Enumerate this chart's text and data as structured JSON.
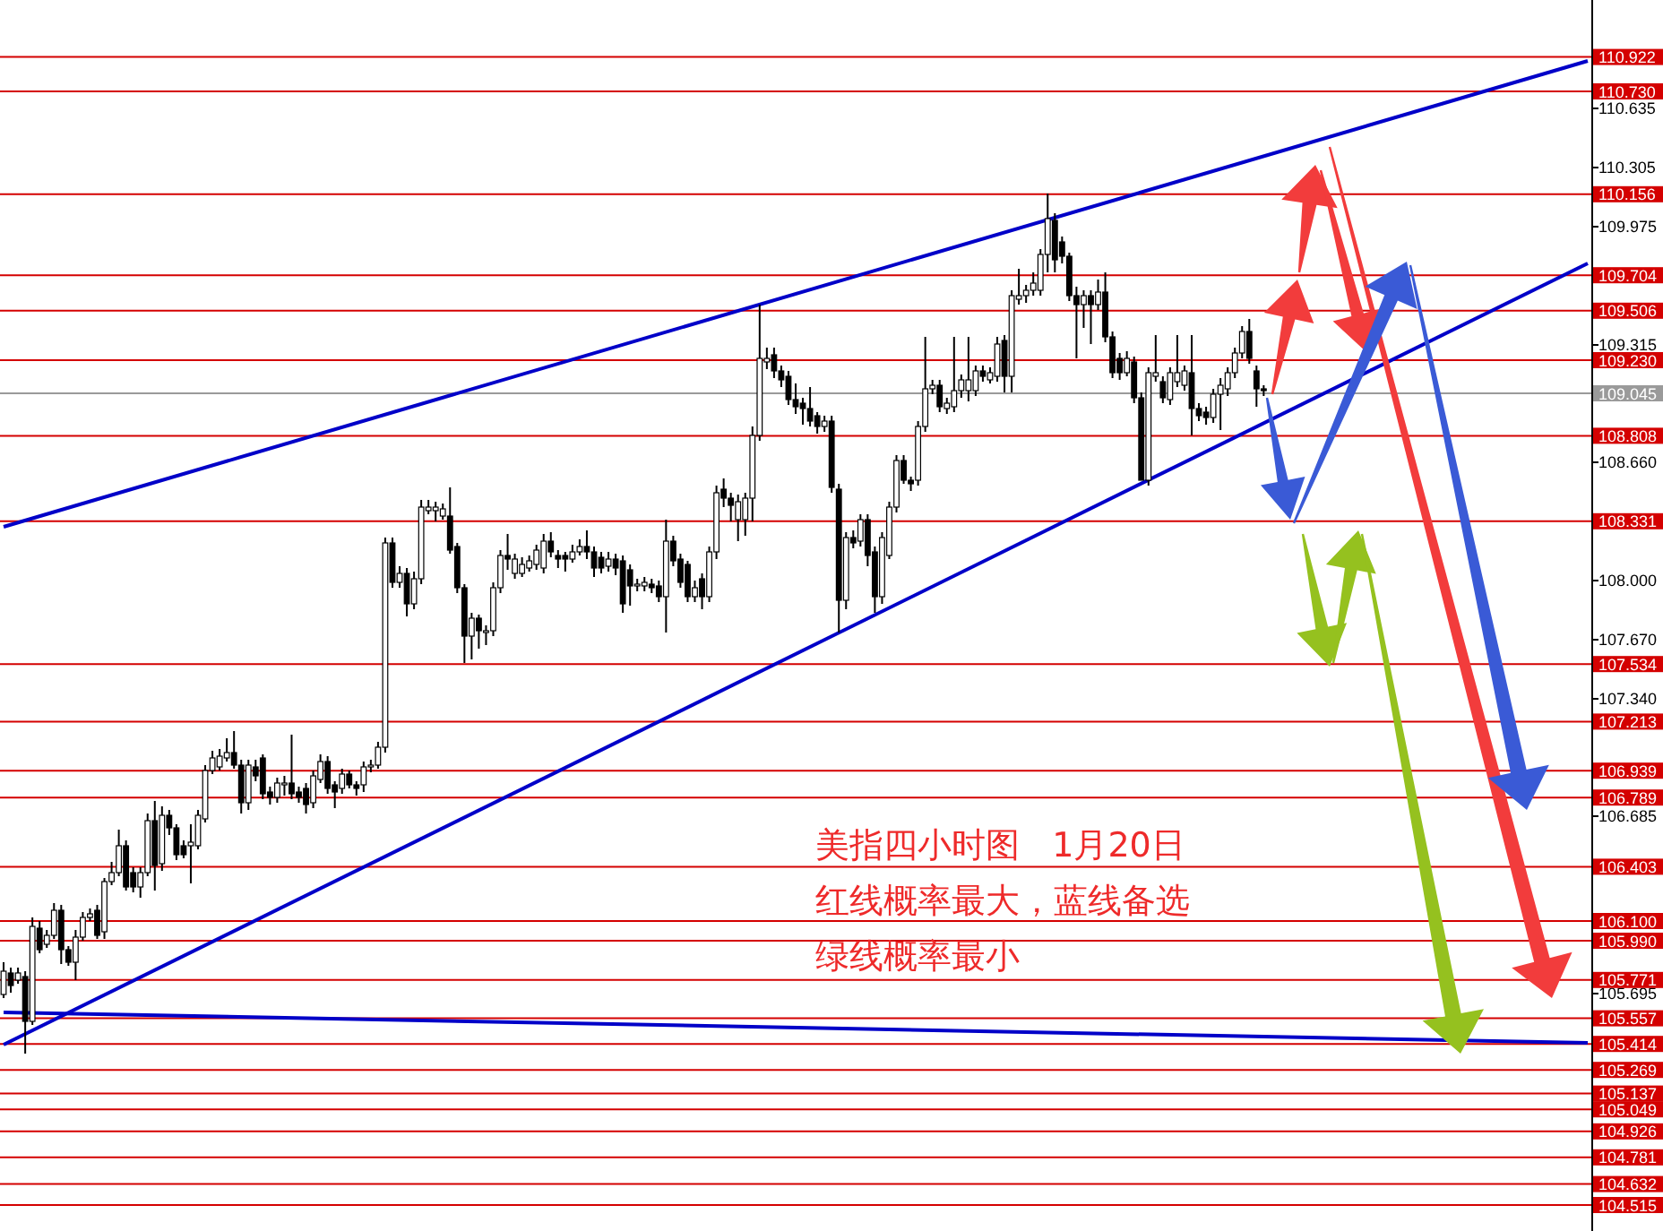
{
  "chart_data": {
    "type": "candlestick",
    "categories": [
      null,
      null,
      null,
      null,
      null,
      null,
      null,
      null,
      null,
      null,
      null,
      null,
      null,
      null,
      null,
      null,
      null,
      null,
      null,
      null,
      null,
      null,
      null,
      null,
      null,
      null,
      null,
      null,
      null,
      null,
      null,
      null,
      null,
      null,
      null,
      null,
      null,
      null,
      null,
      null,
      null,
      null,
      null,
      null,
      null,
      null,
      null,
      null,
      null,
      null,
      null,
      null,
      null,
      null,
      null,
      null,
      null,
      null,
      null,
      null,
      null,
      null,
      null,
      null,
      null,
      null,
      null,
      null,
      null,
      null,
      null,
      null,
      null,
      null,
      null,
      null,
      null,
      null,
      null,
      null,
      null,
      null,
      null,
      null,
      null,
      null,
      null,
      null,
      null,
      null,
      null,
      null,
      null,
      null,
      null,
      null,
      null,
      null,
      null,
      null,
      null,
      null,
      null,
      null,
      null,
      null,
      null,
      null,
      null,
      null,
      null,
      null,
      null,
      null,
      null,
      null,
      null,
      null,
      null,
      null,
      null,
      null,
      null,
      null,
      null,
      null,
      null,
      null,
      null,
      null,
      null,
      null,
      null,
      null,
      null,
      null,
      null,
      null,
      null,
      null,
      null,
      null,
      null,
      null,
      null,
      null,
      null,
      null,
      null,
      null,
      null,
      null,
      null,
      null,
      null,
      null,
      null,
      null,
      null,
      null,
      null,
      null,
      null,
      null,
      null,
      null,
      null,
      null,
      null,
      null,
      null,
      null,
      null,
      null,
      null,
      null,
      null,
      null,
      null,
      null,
      null,
      null,
      null,
      null,
      null,
      null,
      null,
      null,
      null,
      null,
      null,
      null,
      null,
      null,
      null,
      null,
      null,
      null,
      null,
      null,
      null,
      null,
      null,
      null,
      null,
      null,
      null,
      null,
      null,
      null,
      null,
      null,
      null,
      null,
      null,
      null,
      null,
      null,
      null,
      null,
      null
    ],
    "ohlc": [
      [
        105.69,
        105.87,
        105.67,
        105.82
      ],
      [
        105.81,
        105.84,
        105.7,
        105.74
      ],
      [
        105.77,
        105.84,
        105.75,
        105.81
      ],
      [
        105.79,
        105.82,
        105.36,
        105.54
      ],
      [
        105.54,
        106.12,
        105.52,
        106.07
      ],
      [
        106.06,
        106.1,
        105.92,
        105.94
      ],
      [
        105.97,
        106.05,
        105.95,
        106.02
      ],
      [
        106.02,
        106.2,
        106.0,
        106.16
      ],
      [
        106.16,
        106.19,
        105.86,
        105.94
      ],
      [
        105.94,
        105.96,
        105.85,
        105.87
      ],
      [
        105.87,
        106.05,
        105.77,
        106.01
      ],
      [
        106.01,
        106.15,
        105.99,
        106.12
      ],
      [
        106.12,
        106.17,
        106.1,
        106.14
      ],
      [
        106.16,
        106.19,
        106.0,
        106.02
      ],
      [
        106.04,
        106.34,
        106.0,
        106.32
      ],
      [
        106.32,
        106.43,
        106.3,
        106.37
      ],
      [
        106.37,
        106.61,
        106.35,
        106.52
      ],
      [
        106.52,
        106.55,
        106.27,
        106.29
      ],
      [
        106.37,
        106.4,
        106.26,
        106.29
      ],
      [
        106.29,
        106.4,
        106.23,
        106.37
      ],
      [
        106.37,
        106.7,
        106.35,
        106.66
      ],
      [
        106.66,
        106.77,
        106.27,
        106.41
      ],
      [
        106.42,
        106.74,
        106.38,
        106.69
      ],
      [
        106.69,
        106.72,
        106.58,
        106.62
      ],
      [
        106.62,
        106.64,
        106.44,
        106.47
      ],
      [
        106.52,
        106.55,
        106.45,
        106.47
      ],
      [
        106.52,
        106.64,
        106.31,
        106.54
      ],
      [
        106.52,
        106.72,
        106.5,
        106.69
      ],
      [
        106.67,
        106.97,
        106.65,
        106.94
      ],
      [
        106.94,
        107.05,
        106.92,
        107.01
      ],
      [
        106.96,
        107.06,
        106.94,
        107.02
      ],
      [
        107.01,
        107.12,
        106.99,
        107.04
      ],
      [
        107.04,
        107.16,
        106.95,
        106.97
      ],
      [
        106.97,
        107.0,
        106.7,
        106.76
      ],
      [
        106.76,
        107.0,
        106.72,
        106.97
      ],
      [
        106.96,
        107.0,
        106.88,
        106.91
      ],
      [
        107.01,
        107.03,
        106.78,
        106.81
      ],
      [
        106.82,
        106.85,
        106.75,
        106.79
      ],
      [
        106.79,
        106.9,
        106.76,
        106.87
      ],
      [
        106.86,
        106.91,
        106.8,
        106.87
      ],
      [
        106.87,
        107.14,
        106.78,
        106.81
      ],
      [
        106.82,
        106.85,
        106.76,
        106.79
      ],
      [
        106.84,
        106.87,
        106.7,
        106.75
      ],
      [
        106.76,
        106.94,
        106.73,
        106.91
      ],
      [
        106.89,
        107.03,
        106.87,
        106.99
      ],
      [
        106.99,
        107.02,
        106.81,
        106.84
      ],
      [
        106.86,
        106.88,
        106.73,
        106.82
      ],
      [
        106.84,
        106.95,
        106.81,
        106.92
      ],
      [
        106.92,
        106.94,
        106.84,
        106.86
      ],
      [
        106.86,
        106.88,
        106.8,
        106.84
      ],
      [
        106.86,
        106.99,
        106.82,
        106.96
      ],
      [
        106.96,
        107.0,
        106.93,
        106.97
      ],
      [
        106.97,
        107.1,
        106.95,
        107.07
      ],
      [
        107.07,
        108.24,
        107.04,
        108.21
      ],
      [
        108.21,
        108.24,
        107.96,
        107.99
      ],
      [
        107.99,
        108.08,
        107.96,
        108.04
      ],
      [
        108.04,
        108.07,
        107.8,
        107.87
      ],
      [
        107.87,
        108.05,
        107.84,
        108.01
      ],
      [
        108.01,
        108.45,
        107.98,
        108.41
      ],
      [
        108.39,
        108.45,
        108.37,
        108.41
      ],
      [
        108.39,
        108.44,
        108.33,
        108.41
      ],
      [
        108.36,
        108.43,
        108.34,
        108.4
      ],
      [
        108.36,
        108.52,
        108.15,
        108.17
      ],
      [
        108.19,
        108.21,
        107.93,
        107.96
      ],
      [
        107.96,
        107.98,
        107.54,
        107.69
      ],
      [
        107.69,
        107.82,
        107.56,
        107.79
      ],
      [
        107.79,
        107.81,
        107.62,
        107.72
      ],
      [
        107.71,
        107.75,
        107.64,
        107.72
      ],
      [
        107.72,
        107.99,
        107.69,
        107.96
      ],
      [
        107.96,
        108.17,
        107.93,
        108.14
      ],
      [
        108.14,
        108.26,
        108.06,
        108.12
      ],
      [
        108.04,
        108.15,
        108.01,
        108.12
      ],
      [
        108.04,
        108.13,
        108.02,
        108.09
      ],
      [
        108.07,
        108.14,
        108.05,
        108.11
      ],
      [
        108.09,
        108.2,
        108.06,
        108.17
      ],
      [
        108.07,
        108.26,
        108.04,
        108.22
      ],
      [
        108.22,
        108.27,
        108.13,
        108.16
      ],
      [
        108.14,
        108.17,
        108.07,
        108.12
      ],
      [
        108.14,
        108.16,
        108.05,
        108.12
      ],
      [
        108.12,
        108.2,
        108.1,
        108.16
      ],
      [
        108.16,
        108.23,
        108.14,
        108.19
      ],
      [
        108.19,
        108.28,
        108.12,
        108.16
      ],
      [
        108.16,
        108.19,
        108.02,
        108.07
      ],
      [
        108.13,
        108.16,
        108.04,
        108.07
      ],
      [
        108.08,
        108.16,
        108.05,
        108.12
      ],
      [
        108.12,
        108.15,
        108.03,
        108.07
      ],
      [
        108.11,
        108.14,
        107.82,
        107.87
      ],
      [
        108.06,
        108.09,
        107.86,
        107.97
      ],
      [
        107.97,
        108.01,
        107.94,
        107.98
      ],
      [
        107.97,
        108.02,
        107.94,
        107.99
      ],
      [
        107.98,
        108.01,
        107.93,
        107.96
      ],
      [
        107.97,
        108.0,
        107.88,
        107.91
      ],
      [
        107.91,
        108.34,
        107.71,
        108.22
      ],
      [
        108.22,
        108.25,
        108.08,
        108.11
      ],
      [
        108.12,
        108.15,
        107.96,
        107.99
      ],
      [
        108.09,
        108.11,
        107.88,
        107.91
      ],
      [
        107.91,
        108.0,
        107.88,
        107.96
      ],
      [
        108.01,
        108.04,
        107.84,
        107.91
      ],
      [
        107.91,
        108.19,
        107.88,
        108.16
      ],
      [
        108.16,
        108.53,
        108.12,
        108.49
      ],
      [
        108.51,
        108.57,
        108.41,
        108.46
      ],
      [
        108.46,
        108.49,
        108.33,
        108.42
      ],
      [
        108.34,
        108.48,
        108.22,
        108.44
      ],
      [
        108.34,
        108.49,
        108.25,
        108.46
      ],
      [
        108.46,
        108.86,
        108.33,
        108.81
      ],
      [
        108.81,
        109.54,
        108.78,
        109.24
      ],
      [
        109.22,
        109.3,
        109.18,
        109.24
      ],
      [
        109.26,
        109.3,
        109.13,
        109.17
      ],
      [
        109.17,
        109.2,
        109.08,
        109.12
      ],
      [
        109.14,
        109.17,
        108.98,
        109.01
      ],
      [
        109.01,
        109.1,
        108.93,
        108.97
      ],
      [
        108.99,
        109.02,
        108.87,
        108.96
      ],
      [
        108.96,
        109.08,
        108.86,
        108.89
      ],
      [
        108.92,
        108.94,
        108.82,
        108.86
      ],
      [
        108.86,
        108.92,
        108.83,
        108.89
      ],
      [
        108.89,
        108.92,
        108.49,
        108.52
      ],
      [
        108.51,
        108.54,
        107.71,
        107.89
      ],
      [
        107.89,
        108.27,
        107.84,
        108.24
      ],
      [
        108.24,
        108.28,
        108.18,
        108.21
      ],
      [
        108.22,
        108.37,
        108.19,
        108.34
      ],
      [
        108.34,
        108.37,
        108.08,
        108.14
      ],
      [
        108.16,
        108.19,
        107.82,
        107.91
      ],
      [
        107.91,
        108.27,
        107.87,
        108.24
      ],
      [
        108.14,
        108.44,
        108.12,
        108.41
      ],
      [
        108.41,
        108.7,
        108.38,
        108.67
      ],
      [
        108.67,
        108.7,
        108.54,
        108.56
      ],
      [
        108.56,
        108.58,
        108.5,
        108.54
      ],
      [
        108.56,
        108.89,
        108.53,
        108.86
      ],
      [
        108.86,
        109.36,
        108.83,
        109.07
      ],
      [
        109.07,
        109.12,
        109.04,
        109.09
      ],
      [
        109.09,
        109.12,
        108.94,
        108.97
      ],
      [
        108.96,
        109.02,
        108.93,
        108.99
      ],
      [
        108.97,
        109.36,
        108.94,
        109.06
      ],
      [
        109.06,
        109.15,
        109.02,
        109.12
      ],
      [
        109.06,
        109.36,
        109.0,
        109.12
      ],
      [
        109.06,
        109.2,
        109.03,
        109.17
      ],
      [
        109.17,
        109.2,
        109.11,
        109.14
      ],
      [
        109.12,
        109.19,
        109.1,
        109.16
      ],
      [
        109.14,
        109.36,
        109.11,
        109.32
      ],
      [
        109.34,
        109.37,
        109.05,
        109.14
      ],
      [
        109.14,
        109.62,
        109.05,
        109.59
      ],
      [
        109.57,
        109.74,
        109.54,
        109.59
      ],
      [
        109.59,
        109.65,
        109.55,
        109.62
      ],
      [
        109.62,
        109.72,
        109.59,
        109.66
      ],
      [
        109.62,
        109.85,
        109.59,
        109.82
      ],
      [
        109.82,
        110.16,
        109.72,
        110.02
      ],
      [
        110.01,
        110.05,
        109.72,
        109.79
      ],
      [
        109.89,
        109.92,
        109.77,
        109.81
      ],
      [
        109.81,
        109.83,
        109.56,
        109.59
      ],
      [
        109.59,
        109.64,
        109.24,
        109.54
      ],
      [
        109.54,
        109.62,
        109.41,
        109.59
      ],
      [
        109.59,
        109.62,
        109.32,
        109.54
      ],
      [
        109.54,
        109.68,
        109.51,
        109.61
      ],
      [
        109.61,
        109.72,
        109.33,
        109.36
      ],
      [
        109.36,
        109.39,
        109.13,
        109.16
      ],
      [
        109.24,
        109.27,
        109.12,
        109.16
      ],
      [
        109.16,
        109.28,
        109.14,
        109.24
      ],
      [
        109.22,
        109.25,
        108.99,
        109.02
      ],
      [
        109.02,
        109.05,
        108.56,
        108.56
      ],
      [
        108.56,
        109.19,
        108.53,
        109.16
      ],
      [
        109.14,
        109.37,
        109.11,
        109.16
      ],
      [
        109.11,
        109.14,
        108.99,
        109.02
      ],
      [
        109.01,
        109.19,
        108.98,
        109.16
      ],
      [
        109.11,
        109.37,
        109.08,
        109.16
      ],
      [
        109.09,
        109.2,
        109.06,
        109.17
      ],
      [
        109.16,
        109.37,
        108.81,
        108.96
      ],
      [
        108.96,
        108.99,
        108.89,
        108.92
      ],
      [
        108.94,
        108.97,
        108.87,
        108.91
      ],
      [
        108.91,
        109.07,
        108.88,
        109.04
      ],
      [
        109.04,
        109.13,
        108.84,
        109.09
      ],
      [
        109.07,
        109.19,
        109.03,
        109.16
      ],
      [
        109.16,
        109.3,
        109.13,
        109.27
      ],
      [
        109.27,
        109.42,
        109.24,
        109.39
      ],
      [
        109.39,
        109.46,
        109.21,
        109.24
      ],
      [
        109.17,
        109.2,
        108.97,
        109.07
      ],
      [
        109.07,
        109.09,
        109.03,
        109.06
      ],
      null,
      null,
      null,
      null,
      null,
      null,
      null,
      null,
      null,
      null,
      null,
      null,
      null,
      null,
      null,
      null,
      null,
      null,
      null,
      null,
      null,
      null,
      null,
      null,
      null,
      null,
      null,
      null,
      null,
      null,
      null,
      null,
      null,
      null,
      null,
      null,
      null,
      null,
      null,
      null,
      null,
      null,
      null,
      null,
      null
    ],
    "series": [
      {
        "type": "line",
        "color": "#0000c8",
        "values": [
          108.3,
          null,
          null,
          null,
          null,
          null,
          null,
          null,
          null,
          null,
          null,
          null,
          null,
          null,
          null,
          null,
          null,
          null,
          null,
          null,
          null,
          null,
          null,
          null,
          null,
          null,
          null,
          null,
          null,
          null,
          null,
          null,
          null,
          null,
          null,
          null,
          null,
          null,
          null,
          null,
          null,
          null,
          null,
          null,
          null,
          null,
          null,
          null,
          null,
          null,
          null,
          null,
          null,
          null,
          null,
          null,
          null,
          null,
          null,
          null,
          null,
          null,
          null,
          null,
          null,
          null,
          null,
          null,
          null,
          null,
          null,
          null,
          null,
          null,
          null,
          null,
          null,
          null,
          null,
          null,
          null,
          null,
          null,
          null,
          null,
          null,
          null,
          null,
          null,
          null,
          null,
          null,
          null,
          null,
          null,
          null,
          null,
          null,
          null,
          null,
          null,
          null,
          null,
          null,
          null,
          null,
          null,
          null,
          null,
          null,
          null,
          null,
          null,
          null,
          null,
          null,
          null,
          null,
          null,
          null,
          null,
          null,
          null,
          null,
          null,
          null,
          null,
          null,
          null,
          null,
          null,
          null,
          null,
          null,
          null,
          null,
          null,
          null,
          null,
          null,
          null,
          null,
          null,
          null,
          null,
          null,
          null,
          null,
          null,
          null,
          null,
          null,
          null,
          null,
          null,
          null,
          null,
          null,
          null,
          null,
          null,
          null,
          null,
          null,
          null,
          null,
          null,
          null,
          null,
          null,
          null,
          null,
          null,
          null,
          null,
          null,
          null,
          null,
          null,
          null,
          null,
          null,
          null,
          null,
          null,
          null,
          null,
          null,
          null,
          null,
          null,
          null,
          null,
          null,
          null,
          null,
          null,
          null,
          null,
          null,
          null,
          null,
          null,
          null,
          null,
          null,
          null,
          null,
          null,
          null,
          null,
          null,
          null,
          null,
          null,
          null,
          null,
          null,
          null,
          null,
          110.9
        ]
      },
      {
        "type": "line",
        "color": "#0000c8",
        "values": [
          105.41,
          null,
          null,
          null,
          null,
          null,
          null,
          null,
          null,
          null,
          null,
          null,
          null,
          null,
          null,
          null,
          null,
          null,
          null,
          null,
          null,
          null,
          null,
          null,
          null,
          null,
          null,
          null,
          null,
          null,
          null,
          null,
          null,
          null,
          null,
          null,
          null,
          null,
          null,
          null,
          null,
          null,
          null,
          null,
          null,
          null,
          null,
          null,
          null,
          null,
          null,
          null,
          null,
          null,
          null,
          null,
          null,
          null,
          null,
          null,
          null,
          null,
          null,
          null,
          null,
          null,
          null,
          null,
          null,
          null,
          null,
          null,
          null,
          null,
          null,
          null,
          null,
          null,
          null,
          null,
          null,
          null,
          null,
          null,
          null,
          null,
          null,
          null,
          null,
          null,
          null,
          null,
          null,
          null,
          null,
          null,
          null,
          null,
          null,
          null,
          null,
          null,
          null,
          null,
          null,
          null,
          null,
          null,
          null,
          null,
          null,
          null,
          null,
          null,
          null,
          null,
          null,
          null,
          null,
          null,
          null,
          null,
          null,
          null,
          null,
          null,
          null,
          null,
          null,
          null,
          null,
          null,
          null,
          null,
          null,
          null,
          null,
          null,
          null,
          null,
          null,
          null,
          null,
          null,
          null,
          null,
          null,
          null,
          null,
          null,
          null,
          null,
          null,
          null,
          null,
          null,
          null,
          null,
          null,
          null,
          null,
          null,
          null,
          null,
          null,
          null,
          null,
          null,
          null,
          null,
          null,
          null,
          null,
          null,
          null,
          null,
          null,
          null,
          null,
          null,
          null,
          null,
          null,
          null,
          null,
          null,
          null,
          null,
          null,
          null,
          null,
          null,
          null,
          null,
          null,
          null,
          null,
          null,
          null,
          null,
          null,
          null,
          null,
          null,
          null,
          null,
          null,
          null,
          null,
          null,
          null,
          null,
          null,
          null,
          null,
          null,
          null,
          null,
          null,
          null,
          109.77
        ]
      },
      {
        "type": "line",
        "color": "#0000c8",
        "values": [
          105.59,
          null,
          null,
          null,
          null,
          null,
          null,
          null,
          null,
          null,
          null,
          null,
          null,
          null,
          null,
          null,
          null,
          null,
          null,
          null,
          null,
          null,
          null,
          null,
          null,
          null,
          null,
          null,
          null,
          null,
          null,
          null,
          null,
          null,
          null,
          null,
          null,
          null,
          null,
          null,
          null,
          null,
          null,
          null,
          null,
          null,
          null,
          null,
          null,
          null,
          null,
          null,
          null,
          null,
          null,
          null,
          null,
          null,
          null,
          null,
          null,
          null,
          null,
          null,
          null,
          null,
          null,
          null,
          null,
          null,
          null,
          null,
          null,
          null,
          null,
          null,
          null,
          null,
          null,
          null,
          null,
          null,
          null,
          null,
          null,
          null,
          null,
          null,
          null,
          null,
          null,
          null,
          null,
          null,
          null,
          null,
          null,
          null,
          null,
          null,
          null,
          null,
          null,
          null,
          null,
          null,
          null,
          null,
          null,
          null,
          null,
          null,
          null,
          null,
          null,
          null,
          null,
          null,
          null,
          null,
          null,
          null,
          null,
          null,
          null,
          null,
          null,
          null,
          null,
          null,
          null,
          null,
          null,
          null,
          null,
          null,
          null,
          null,
          null,
          null,
          null,
          null,
          null,
          null,
          null,
          null,
          null,
          null,
          null,
          null,
          null,
          null,
          null,
          null,
          null,
          null,
          null,
          null,
          null,
          null,
          null,
          null,
          null,
          null,
          null,
          null,
          null,
          null,
          null,
          null,
          null,
          null,
          null,
          null,
          null,
          null,
          null,
          null,
          null,
          null,
          null,
          null,
          null,
          null,
          null,
          null,
          null,
          null,
          null,
          null,
          null,
          null,
          null,
          null,
          null,
          null,
          null,
          null,
          null,
          null,
          null,
          null,
          null,
          null,
          null,
          null,
          null,
          null,
          null,
          null,
          null,
          null,
          null,
          null,
          null,
          null,
          null,
          null,
          null,
          null,
          105.42
        ]
      }
    ],
    "ylim": [
      104.37,
      111.24
    ],
    "yticks": [
      110.635,
      110.305,
      109.975,
      109.315,
      {
        "value": 108.66,
        "label": "108.660"
      },
      {
        "value": 108.0,
        "label": "108.000"
      },
      {
        "value": 107.67,
        "label": "107.670"
      },
      {
        "value": 107.34,
        "label": "107.340"
      },
      106.685,
      105.695
    ],
    "tick_labels": "y",
    "grid": false,
    "ref_lines": [
      {
        "axis": "y",
        "value": 110.922,
        "label": "110.922",
        "color": "#d40000"
      },
      {
        "axis": "y",
        "value": 110.73,
        "label": "110.730",
        "color": "#d40000"
      },
      {
        "axis": "y",
        "value": 110.156,
        "label": "110.156",
        "color": "#d40000"
      },
      {
        "axis": "y",
        "value": 109.704,
        "label": "109.704",
        "color": "#d40000"
      },
      {
        "axis": "y",
        "value": 109.506,
        "label": "109.506",
        "color": "#d40000"
      },
      {
        "axis": "y",
        "value": 109.23,
        "label": "109.230",
        "color": "#d40000"
      },
      {
        "axis": "y",
        "value": 109.045,
        "label": "109.045",
        "color": "#9a9a9a"
      },
      {
        "axis": "y",
        "value": 108.808,
        "label": "108.808",
        "color": "#d40000"
      },
      {
        "axis": "y",
        "value": 108.331,
        "label": "108.331",
        "color": "#d40000"
      },
      {
        "axis": "y",
        "value": 107.534,
        "label": "107.534",
        "color": "#d40000"
      },
      {
        "axis": "y",
        "value": 107.213,
        "label": "107.213",
        "color": "#d40000"
      },
      {
        "axis": "y",
        "value": 106.939,
        "label": "106.939",
        "color": "#d40000"
      },
      {
        "axis": "y",
        "value": 106.789,
        "label": "106.789",
        "color": "#d40000"
      },
      {
        "axis": "y",
        "value": 106.403,
        "label": "106.403",
        "color": "#d40000"
      },
      {
        "axis": "y",
        "value": 106.1,
        "label": "106.100",
        "color": "#d40000"
      },
      {
        "axis": "y",
        "value": 105.99,
        "label": "105.990",
        "color": "#d40000"
      },
      {
        "axis": "y",
        "value": 105.771,
        "label": "105.771",
        "color": "#d40000"
      },
      {
        "axis": "y",
        "value": 105.557,
        "label": "105.557",
        "color": "#d40000"
      },
      {
        "axis": "y",
        "value": 105.414,
        "label": "105.414",
        "color": "#d40000"
      },
      {
        "axis": "y",
        "value": 105.269,
        "label": "105.269",
        "color": "#d40000"
      },
      {
        "axis": "y",
        "value": 105.137,
        "label": "105.137",
        "color": "#d40000"
      },
      {
        "axis": "y",
        "value": 105.049,
        "label": "105.049",
        "color": "#d40000"
      },
      {
        "axis": "y",
        "value": 104.926,
        "label": "104.926",
        "color": "#d40000"
      },
      {
        "axis": "y",
        "value": 104.781,
        "label": "104.781",
        "color": "#d40000"
      },
      {
        "axis": "y",
        "value": 104.632,
        "label": "104.632",
        "color": "#d40000"
      },
      {
        "axis": "y",
        "value": 104.515,
        "label": "104.515",
        "color": "#d40000"
      }
    ],
    "annotations": [
      "美指四小时图   1月20日",
      "红线概率最大，蓝线备选",
      "绿线概率最小"
    ]
  }
}
